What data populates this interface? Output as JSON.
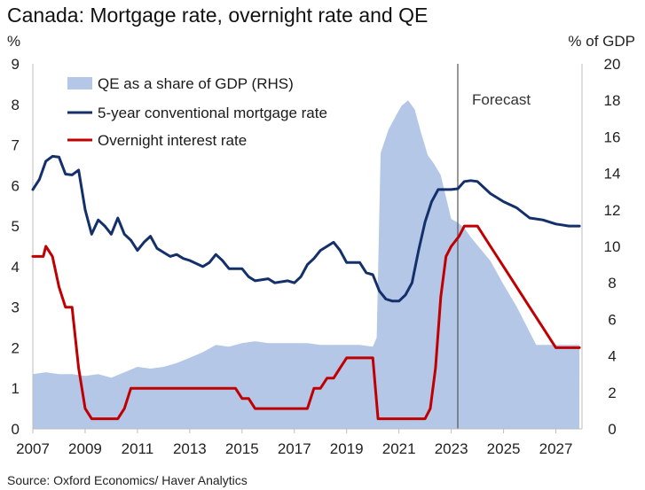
{
  "chart_data": {
    "type": "line",
    "title": "Canada: Mortgage rate, overnight rate and QE",
    "y_left_unit": "%",
    "y_right_unit": "% of GDP",
    "y_left_range": [
      0,
      9
    ],
    "y_right_range": [
      0,
      20
    ],
    "x_range": [
      2007,
      2028
    ],
    "y_left_ticks": [
      "0",
      "1",
      "2",
      "3",
      "4",
      "5",
      "6",
      "7",
      "8",
      "9"
    ],
    "y_right_ticks": [
      "0",
      "2",
      "4",
      "6",
      "8",
      "10",
      "12",
      "14",
      "16",
      "18",
      "20"
    ],
    "x_ticks": [
      "2007",
      "2009",
      "2011",
      "2013",
      "2015",
      "2017",
      "2019",
      "2021",
      "2023",
      "2025",
      "2027"
    ],
    "forecast_label": "Forecast",
    "forecast_year": 2023.25,
    "source": "Source: Oxford Economics/ Haver Analytics",
    "grid": false,
    "legend_position": "top-left",
    "series": [
      {
        "name": "QE as a share of GDP (RHS)",
        "type": "area",
        "axis": "right",
        "color": "#b4c7e7",
        "points": [
          [
            2007.0,
            3.0
          ],
          [
            2007.5,
            3.1
          ],
          [
            2008.0,
            3.0
          ],
          [
            2008.5,
            3.0
          ],
          [
            2009.0,
            2.9
          ],
          [
            2009.5,
            3.0
          ],
          [
            2010.0,
            2.8
          ],
          [
            2010.5,
            3.1
          ],
          [
            2011.0,
            3.4
          ],
          [
            2011.5,
            3.3
          ],
          [
            2012.0,
            3.4
          ],
          [
            2012.5,
            3.6
          ],
          [
            2013.0,
            3.9
          ],
          [
            2013.5,
            4.2
          ],
          [
            2014.0,
            4.6
          ],
          [
            2014.5,
            4.5
          ],
          [
            2015.0,
            4.7
          ],
          [
            2015.5,
            4.8
          ],
          [
            2016.0,
            4.7
          ],
          [
            2016.5,
            4.7
          ],
          [
            2017.0,
            4.7
          ],
          [
            2017.5,
            4.7
          ],
          [
            2018.0,
            4.6
          ],
          [
            2018.5,
            4.6
          ],
          [
            2019.0,
            4.6
          ],
          [
            2019.5,
            4.6
          ],
          [
            2020.0,
            4.5
          ],
          [
            2020.15,
            5.0
          ],
          [
            2020.3,
            15.1
          ],
          [
            2020.6,
            16.4
          ],
          [
            2020.9,
            17.2
          ],
          [
            2021.1,
            17.7
          ],
          [
            2021.35,
            18.0
          ],
          [
            2021.6,
            17.5
          ],
          [
            2021.85,
            16.2
          ],
          [
            2022.1,
            15.0
          ],
          [
            2022.35,
            14.5
          ],
          [
            2022.6,
            13.9
          ],
          [
            2023.0,
            11.5
          ],
          [
            2023.25,
            11.3
          ],
          [
            2023.5,
            11.0
          ],
          [
            2023.75,
            10.5
          ],
          [
            2024.5,
            9.2
          ],
          [
            2025.0,
            7.9
          ],
          [
            2025.5,
            6.7
          ],
          [
            2026.0,
            5.3
          ],
          [
            2026.25,
            4.6
          ],
          [
            2027.0,
            4.6
          ],
          [
            2027.9,
            4.6
          ]
        ]
      },
      {
        "name": "5-year conventional mortgage rate",
        "type": "line",
        "axis": "left",
        "color": "#14306b",
        "points": [
          [
            2007.0,
            5.9
          ],
          [
            2007.25,
            6.15
          ],
          [
            2007.5,
            6.6
          ],
          [
            2007.75,
            6.72
          ],
          [
            2008.0,
            6.7
          ],
          [
            2008.25,
            6.28
          ],
          [
            2008.5,
            6.26
          ],
          [
            2008.75,
            6.38
          ],
          [
            2009.0,
            5.4
          ],
          [
            2009.25,
            4.8
          ],
          [
            2009.5,
            5.15
          ],
          [
            2009.75,
            5.0
          ],
          [
            2010.0,
            4.8
          ],
          [
            2010.25,
            5.2
          ],
          [
            2010.5,
            4.8
          ],
          [
            2010.75,
            4.65
          ],
          [
            2011.0,
            4.4
          ],
          [
            2011.25,
            4.6
          ],
          [
            2011.5,
            4.75
          ],
          [
            2011.75,
            4.45
          ],
          [
            2012.0,
            4.35
          ],
          [
            2012.25,
            4.25
          ],
          [
            2012.5,
            4.3
          ],
          [
            2012.75,
            4.2
          ],
          [
            2013.0,
            4.15
          ],
          [
            2013.5,
            4.0
          ],
          [
            2013.75,
            4.1
          ],
          [
            2014.0,
            4.3
          ],
          [
            2014.25,
            4.15
          ],
          [
            2014.5,
            3.95
          ],
          [
            2015.0,
            3.95
          ],
          [
            2015.25,
            3.75
          ],
          [
            2015.5,
            3.65
          ],
          [
            2016.0,
            3.7
          ],
          [
            2016.25,
            3.6
          ],
          [
            2016.75,
            3.65
          ],
          [
            2017.0,
            3.6
          ],
          [
            2017.25,
            3.75
          ],
          [
            2017.5,
            4.05
          ],
          [
            2017.75,
            4.2
          ],
          [
            2018.0,
            4.4
          ],
          [
            2018.5,
            4.6
          ],
          [
            2018.75,
            4.4
          ],
          [
            2019.0,
            4.1
          ],
          [
            2019.5,
            4.1
          ],
          [
            2019.75,
            3.85
          ],
          [
            2020.0,
            3.8
          ],
          [
            2020.25,
            3.4
          ],
          [
            2020.5,
            3.2
          ],
          [
            2020.75,
            3.15
          ],
          [
            2021.0,
            3.15
          ],
          [
            2021.25,
            3.3
          ],
          [
            2021.5,
            3.6
          ],
          [
            2021.75,
            4.4
          ],
          [
            2022.0,
            5.1
          ],
          [
            2022.25,
            5.6
          ],
          [
            2022.5,
            5.9
          ],
          [
            2022.75,
            5.9
          ],
          [
            2023.0,
            5.9
          ],
          [
            2023.25,
            5.92
          ],
          [
            2023.5,
            6.1
          ],
          [
            2023.75,
            6.12
          ],
          [
            2024.0,
            6.1
          ],
          [
            2024.5,
            5.8
          ],
          [
            2025.0,
            5.6
          ],
          [
            2025.5,
            5.45
          ],
          [
            2026.0,
            5.2
          ],
          [
            2026.5,
            5.15
          ],
          [
            2027.0,
            5.05
          ],
          [
            2027.5,
            5.0
          ],
          [
            2027.9,
            5.0
          ]
        ]
      },
      {
        "name": "Overnight interest rate",
        "type": "line",
        "axis": "left",
        "color": "#c00000",
        "points": [
          [
            2007.0,
            4.25
          ],
          [
            2007.4,
            4.25
          ],
          [
            2007.5,
            4.5
          ],
          [
            2007.75,
            4.25
          ],
          [
            2008.0,
            3.5
          ],
          [
            2008.25,
            3.0
          ],
          [
            2008.5,
            3.0
          ],
          [
            2008.75,
            1.5
          ],
          [
            2009.0,
            0.5
          ],
          [
            2009.25,
            0.25
          ],
          [
            2010.25,
            0.25
          ],
          [
            2010.5,
            0.5
          ],
          [
            2010.75,
            1.0
          ],
          [
            2014.75,
            1.0
          ],
          [
            2015.0,
            0.75
          ],
          [
            2015.25,
            0.75
          ],
          [
            2015.5,
            0.5
          ],
          [
            2017.5,
            0.5
          ],
          [
            2017.75,
            1.0
          ],
          [
            2018.0,
            1.0
          ],
          [
            2018.25,
            1.25
          ],
          [
            2018.5,
            1.25
          ],
          [
            2018.75,
            1.5
          ],
          [
            2019.0,
            1.75
          ],
          [
            2020.0,
            1.75
          ],
          [
            2020.2,
            0.25
          ],
          [
            2022.0,
            0.25
          ],
          [
            2022.2,
            0.5
          ],
          [
            2022.4,
            1.5
          ],
          [
            2022.6,
            3.25
          ],
          [
            2022.8,
            4.25
          ],
          [
            2023.0,
            4.5
          ],
          [
            2023.3,
            4.75
          ],
          [
            2023.5,
            5.0
          ],
          [
            2024.0,
            5.0
          ],
          [
            2024.5,
            4.5
          ],
          [
            2025.0,
            4.0
          ],
          [
            2025.5,
            3.5
          ],
          [
            2026.0,
            3.0
          ],
          [
            2026.5,
            2.5
          ],
          [
            2027.0,
            2.0
          ],
          [
            2027.9,
            2.0
          ]
        ]
      }
    ]
  }
}
